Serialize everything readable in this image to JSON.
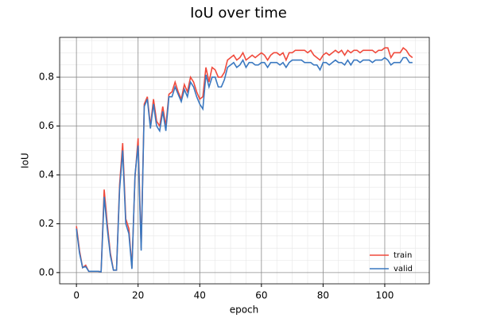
{
  "chart_data": {
    "type": "line",
    "title": "IoU over time",
    "x_label": "epoch",
    "y_label": "IoU",
    "x": [
      0,
      1,
      2,
      3,
      4,
      5,
      6,
      7,
      8,
      9,
      10,
      11,
      12,
      13,
      14,
      15,
      16,
      17,
      18,
      19,
      20,
      21,
      22,
      23,
      24,
      25,
      26,
      27,
      28,
      29,
      30,
      31,
      32,
      33,
      34,
      35,
      36,
      37,
      38,
      39,
      40,
      41,
      42,
      43,
      44,
      45,
      46,
      47,
      48,
      49,
      50,
      51,
      52,
      53,
      54,
      55,
      56,
      57,
      58,
      59,
      60,
      61,
      62,
      63,
      64,
      65,
      66,
      67,
      68,
      69,
      70,
      71,
      72,
      73,
      74,
      75,
      76,
      77,
      78,
      79,
      80,
      81,
      82,
      83,
      84,
      85,
      86,
      87,
      88,
      89,
      90,
      91,
      92,
      93,
      94,
      95,
      96,
      97,
      98,
      99,
      100,
      101,
      102,
      103,
      104,
      105,
      106,
      107,
      108,
      109
    ],
    "series": [
      {
        "name": "train",
        "color": "#f04a3c",
        "values": [
          0.19,
          0.09,
          0.02,
          0.03,
          0.005,
          0.005,
          0.005,
          0.005,
          0.003,
          0.34,
          0.2,
          0.08,
          0.01,
          0.01,
          0.36,
          0.53,
          0.22,
          0.18,
          0.02,
          0.39,
          0.55,
          0.1,
          0.69,
          0.72,
          0.6,
          0.71,
          0.62,
          0.6,
          0.68,
          0.6,
          0.73,
          0.74,
          0.78,
          0.74,
          0.71,
          0.77,
          0.74,
          0.8,
          0.78,
          0.74,
          0.71,
          0.72,
          0.84,
          0.78,
          0.84,
          0.83,
          0.8,
          0.8,
          0.82,
          0.87,
          0.88,
          0.89,
          0.87,
          0.88,
          0.9,
          0.87,
          0.88,
          0.89,
          0.88,
          0.89,
          0.9,
          0.89,
          0.87,
          0.89,
          0.9,
          0.9,
          0.89,
          0.9,
          0.87,
          0.9,
          0.9,
          0.91,
          0.91,
          0.91,
          0.91,
          0.9,
          0.91,
          0.89,
          0.88,
          0.87,
          0.89,
          0.9,
          0.89,
          0.9,
          0.91,
          0.9,
          0.91,
          0.89,
          0.91,
          0.9,
          0.91,
          0.91,
          0.9,
          0.91,
          0.91,
          0.91,
          0.91,
          0.9,
          0.91,
          0.91,
          0.92,
          0.92,
          0.88,
          0.9,
          0.9,
          0.9,
          0.92,
          0.91,
          0.89,
          0.88
        ]
      },
      {
        "name": "valid",
        "color": "#3a78c0",
        "values": [
          0.18,
          0.08,
          0.02,
          0.025,
          0.005,
          0.005,
          0.005,
          0.005,
          0.003,
          0.31,
          0.18,
          0.07,
          0.01,
          0.01,
          0.34,
          0.5,
          0.2,
          0.16,
          0.015,
          0.4,
          0.52,
          0.09,
          0.68,
          0.71,
          0.59,
          0.69,
          0.6,
          0.58,
          0.66,
          0.58,
          0.72,
          0.72,
          0.76,
          0.73,
          0.7,
          0.75,
          0.72,
          0.78,
          0.76,
          0.72,
          0.69,
          0.67,
          0.81,
          0.76,
          0.8,
          0.8,
          0.76,
          0.76,
          0.79,
          0.84,
          0.85,
          0.86,
          0.84,
          0.85,
          0.87,
          0.84,
          0.86,
          0.86,
          0.85,
          0.85,
          0.86,
          0.86,
          0.84,
          0.86,
          0.86,
          0.86,
          0.85,
          0.86,
          0.84,
          0.86,
          0.87,
          0.87,
          0.87,
          0.87,
          0.86,
          0.86,
          0.86,
          0.85,
          0.85,
          0.83,
          0.86,
          0.86,
          0.85,
          0.86,
          0.87,
          0.86,
          0.86,
          0.85,
          0.87,
          0.85,
          0.87,
          0.87,
          0.86,
          0.87,
          0.87,
          0.87,
          0.86,
          0.87,
          0.87,
          0.87,
          0.88,
          0.87,
          0.85,
          0.86,
          0.86,
          0.86,
          0.88,
          0.88,
          0.86,
          0.86
        ]
      }
    ],
    "xlim": [
      -5.45,
      114.45
    ],
    "ylim": [
      -0.046,
      0.963
    ],
    "xticks": [
      0,
      20,
      40,
      60,
      80,
      100
    ],
    "yticks": [
      {
        "value": 0,
        "label": "0.0"
      },
      0.2,
      0.4,
      0.6,
      0.8
    ],
    "xminorticks": [
      -5,
      5,
      10,
      15,
      25,
      30,
      35,
      45,
      50,
      55,
      65,
      70,
      75,
      85,
      90,
      95,
      105,
      110
    ],
    "yminorticks": [
      0.05,
      0.1,
      0.15,
      0.25,
      0.3,
      0.35,
      0.45,
      0.5,
      0.55,
      0.65,
      0.7,
      0.75,
      0.85,
      0.9,
      0.95
    ],
    "grid": true,
    "legend": "lower right"
  }
}
